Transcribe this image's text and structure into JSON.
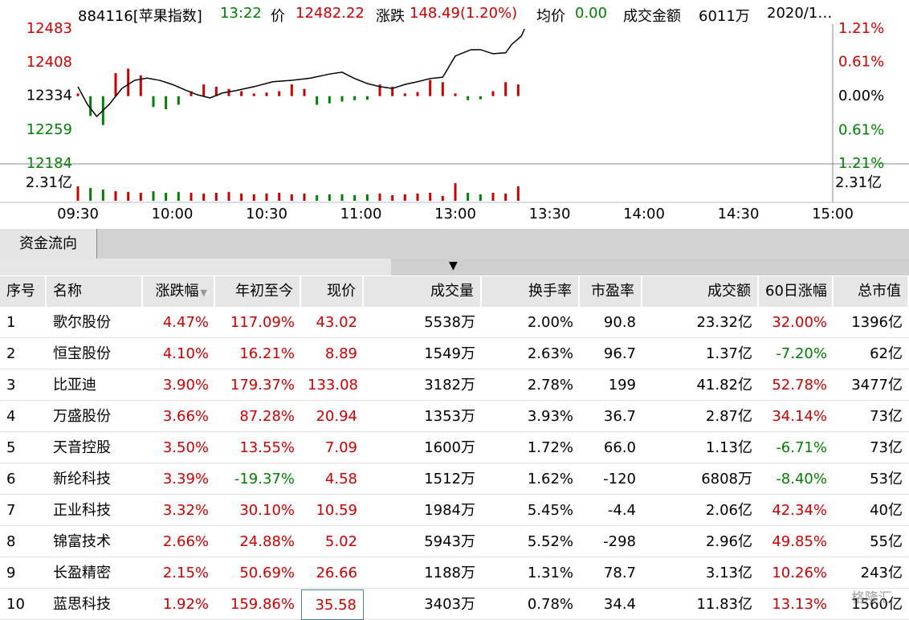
{
  "header": {
    "code": "884116[苹果指数]",
    "time": "13:22",
    "price_label": "价",
    "price": "12482.22",
    "change_label": "涨跌",
    "change": "148.49(1.20%)",
    "avg_label": "均价",
    "avg": "0.00",
    "amount_label": "成交金额",
    "amount": "6011万",
    "date": "2020/1…"
  },
  "chart_data": {
    "type": "line",
    "color": "#000000",
    "up_color": "#cc0000",
    "down_color": "#008000",
    "x": [
      0,
      3,
      6,
      10,
      14,
      18,
      22,
      26,
      30,
      34,
      38,
      42,
      46,
      50,
      56,
      62,
      68,
      74,
      80,
      84,
      88,
      92,
      96,
      100,
      104,
      108,
      112,
      116,
      120,
      125,
      128,
      132,
      136,
      138,
      141,
      142
    ],
    "values": [
      12355,
      12316,
      12289,
      12316,
      12351,
      12369,
      12374,
      12369,
      12360,
      12348,
      12337,
      12330,
      12341,
      12346,
      12355,
      12366,
      12369,
      12374,
      12383,
      12387,
      12373,
      12362,
      12355,
      12351,
      12360,
      12366,
      12373,
      12376,
      12423,
      12437,
      12437,
      12428,
      12430,
      12449,
      12467,
      12483
    ],
    "xlim": [
      0,
      240
    ],
    "xticks": [
      {
        "value": 0,
        "label": "09:30"
      },
      {
        "value": 30,
        "label": "10:00"
      },
      {
        "value": 60,
        "label": "10:30"
      },
      {
        "value": 90,
        "label": "11:00"
      },
      {
        "value": 120,
        "label": "13:00"
      },
      {
        "value": 150,
        "label": "13:30"
      },
      {
        "value": 180,
        "label": "14:00"
      },
      {
        "value": 210,
        "label": "14:30"
      },
      {
        "value": 240,
        "label": "15:00"
      }
    ],
    "ylim": [
      12184,
      12483
    ],
    "yticks": [
      12483,
      12408,
      12334,
      12259,
      12184
    ],
    "y2lim": [
      -1.21,
      1.21
    ],
    "y2ticks": [
      {
        "value": 1.21,
        "label": "1.21%"
      },
      {
        "value": 0.61,
        "label": "0.61%"
      },
      {
        "value": 0,
        "label": "0.00%"
      },
      {
        "value": -0.61,
        "label": "0.61%"
      },
      {
        "value": -1.21,
        "label": "1.21%"
      }
    ],
    "bar_x": [
      0,
      4,
      8,
      12,
      16,
      20,
      24,
      28,
      32,
      36,
      40,
      44,
      48,
      52,
      56,
      60,
      64,
      68,
      72,
      76,
      80,
      84,
      88,
      92,
      96,
      100,
      104,
      108,
      112,
      116,
      120,
      124,
      128,
      132,
      136,
      140
    ],
    "bars": {
      "values": [
        12340,
        12290,
        12270,
        12385,
        12395,
        12380,
        12310,
        12305,
        12315,
        12345,
        12360,
        12355,
        12350,
        12345,
        12340,
        12342,
        12345,
        12360,
        12350,
        12315,
        12318,
        12322,
        12325,
        12326,
        12360,
        12355,
        12340,
        12343,
        12370,
        12365,
        12340,
        12325,
        12327,
        12345,
        12365,
        12360
      ]
    },
    "volume": {
      "vlim": [
        0,
        2.31
      ],
      "vticks": [
        {
          "value": 2.31,
          "label": "2.31亿"
        }
      ],
      "values": [
        0.9,
        0.8,
        0.7,
        0.6,
        0.55,
        0.5,
        0.6,
        0.5,
        0.55,
        0.5,
        0.45,
        0.5,
        0.55,
        0.45,
        0.4,
        0.45,
        0.5,
        0.4,
        0.45,
        0.35,
        0.4,
        0.4,
        0.35,
        0.4,
        0.45,
        0.35,
        0.4,
        0.45,
        0.5,
        0.3,
        1.1,
        0.5,
        0.4,
        0.5,
        0.45,
        0.9
      ]
    }
  },
  "tab": "资金流向",
  "table": {
    "columns": [
      "序号",
      "名称",
      "涨跌幅",
      "年初至今",
      "现价",
      "成交量",
      "换手率",
      "市盈率",
      "成交额",
      "60日涨幅",
      "总市值"
    ],
    "rows": [
      [
        "1",
        "歌尔股份",
        "4.47%",
        "117.09%",
        "43.02",
        "5538万",
        "2.00%",
        "90.8",
        "23.32亿",
        "32.00%",
        "1396亿"
      ],
      [
        "2",
        "恒宝股份",
        "4.10%",
        "16.21%",
        "8.89",
        "1549万",
        "2.63%",
        "96.7",
        "1.37亿",
        "-7.20%",
        "62亿"
      ],
      [
        "3",
        "比亚迪",
        "3.90%",
        "179.37%",
        "133.08",
        "3182万",
        "2.78%",
        "199",
        "41.82亿",
        "52.78%",
        "3477亿"
      ],
      [
        "4",
        "万盛股份",
        "3.66%",
        "87.28%",
        "20.94",
        "1353万",
        "3.93%",
        "36.7",
        "2.87亿",
        "34.14%",
        "73亿"
      ],
      [
        "5",
        "天音控股",
        "3.50%",
        "13.55%",
        "7.09",
        "1600万",
        "1.72%",
        "66.0",
        "1.13亿",
        "-6.71%",
        "73亿"
      ],
      [
        "6",
        "新纶科技",
        "3.39%",
        "-19.37%",
        "4.58",
        "1512万",
        "1.62%",
        "-120",
        "6808万",
        "-8.40%",
        "53亿"
      ],
      [
        "7",
        "正业科技",
        "3.32%",
        "30.10%",
        "10.59",
        "1984万",
        "5.45%",
        "-4.4",
        "2.06亿",
        "42.34%",
        "40亿"
      ],
      [
        "8",
        "锦富技术",
        "2.66%",
        "24.88%",
        "5.02",
        "5943万",
        "5.52%",
        "-298",
        "2.96亿",
        "49.85%",
        "55亿"
      ],
      [
        "9",
        "长盈精密",
        "2.15%",
        "50.69%",
        "26.66",
        "1188万",
        "1.31%",
        "78.7",
        "3.13亿",
        "10.26%",
        "243亿"
      ],
      [
        "10",
        "蓝思科技",
        "1.92%",
        "159.86%",
        "35.58",
        "3403万",
        "0.78%",
        "34.4",
        "11.83亿",
        "13.13%",
        "1560亿"
      ]
    ]
  },
  "watermark": "格隆汇"
}
